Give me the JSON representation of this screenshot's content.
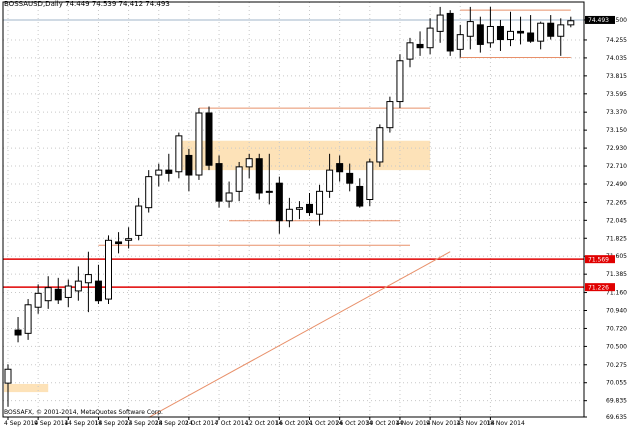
{
  "header": {
    "symbol": "BOSSAUSD,Daily",
    "ohlc": "74.449 74.539 74.412 74.493"
  },
  "copyright": "BOSSAFX, © 2001-2014, MetaQuotes Software Corp.",
  "colors": {
    "background": "#ffffff",
    "grid": "#c8c8c8",
    "axis": "#000000",
    "bull_body": "#ffffff",
    "bear_body": "#000000",
    "wick": "#000000",
    "resistance": "#e8906a",
    "support_red": "#e00000",
    "zone": "#fde2b8",
    "trend": "#e8906a",
    "bid_line": "#a0b4c8"
  },
  "chart_data": {
    "type": "candlestick",
    "ylim": [
      69.635,
      74.72
    ],
    "y_ticks": [
      "74.500",
      "74.255",
      "74.035",
      "73.815",
      "73.595",
      "73.370",
      "73.150",
      "72.930",
      "72.710",
      "72.490",
      "72.265",
      "72.045",
      "71.825",
      "71.605",
      "71.385",
      "71.160",
      "70.940",
      "70.720",
      "70.500",
      "70.275",
      "70.055",
      "69.835",
      "69.635"
    ],
    "x_ticks": [
      {
        "i": 0,
        "label": "4 Sep 2014"
      },
      {
        "i": 3,
        "label": "9 Sep 2014"
      },
      {
        "i": 6,
        "label": "14 Sep 2014"
      },
      {
        "i": 9,
        "label": "18 Sep 2014"
      },
      {
        "i": 12,
        "label": "23 Sep 2014"
      },
      {
        "i": 15,
        "label": "28 Sep 2014"
      },
      {
        "i": 18,
        "label": "2 Oct 2014"
      },
      {
        "i": 21,
        "label": "7 Oct 2014"
      },
      {
        "i": 24,
        "label": "12 Oct 2014"
      },
      {
        "i": 27,
        "label": "16 Oct 2014"
      },
      {
        "i": 30,
        "label": "21 Oct 2014"
      },
      {
        "i": 33,
        "label": "26 Oct 2014"
      },
      {
        "i": 36,
        "label": "30 Oct 2014"
      },
      {
        "i": 39,
        "label": "4 Nov 2014"
      },
      {
        "i": 42,
        "label": "9 Nov 2014"
      },
      {
        "i": 45,
        "label": "13 Nov 2014"
      },
      {
        "i": 48,
        "label": "18 Nov 2014"
      }
    ],
    "current_price": "74.493",
    "red_level_labels": [
      "71.569",
      "71.226"
    ],
    "candles": [
      {
        "o": 70.05,
        "h": 70.28,
        "l": 69.76,
        "c": 70.22
      },
      {
        "o": 70.7,
        "h": 70.86,
        "l": 70.55,
        "c": 70.64
      },
      {
        "o": 70.66,
        "h": 71.08,
        "l": 70.58,
        "c": 71.01
      },
      {
        "o": 70.98,
        "h": 71.26,
        "l": 70.9,
        "c": 71.15
      },
      {
        "o": 71.06,
        "h": 71.36,
        "l": 70.96,
        "c": 71.22
      },
      {
        "o": 71.2,
        "h": 71.34,
        "l": 71.02,
        "c": 71.07
      },
      {
        "o": 71.1,
        "h": 71.32,
        "l": 70.98,
        "c": 71.24
      },
      {
        "o": 71.18,
        "h": 71.48,
        "l": 71.06,
        "c": 71.3
      },
      {
        "o": 71.28,
        "h": 71.66,
        "l": 70.92,
        "c": 71.38
      },
      {
        "o": 71.3,
        "h": 71.5,
        "l": 71.02,
        "c": 71.06
      },
      {
        "o": 71.08,
        "h": 71.86,
        "l": 71.02,
        "c": 71.8
      },
      {
        "o": 71.78,
        "h": 71.9,
        "l": 71.64,
        "c": 71.76
      },
      {
        "o": 71.8,
        "h": 71.96,
        "l": 71.7,
        "c": 71.82
      },
      {
        "o": 71.86,
        "h": 72.32,
        "l": 71.8,
        "c": 72.22
      },
      {
        "o": 72.2,
        "h": 72.66,
        "l": 72.14,
        "c": 72.58
      },
      {
        "o": 72.6,
        "h": 72.74,
        "l": 72.46,
        "c": 72.66
      },
      {
        "o": 72.66,
        "h": 72.86,
        "l": 72.52,
        "c": 72.62
      },
      {
        "o": 72.64,
        "h": 73.12,
        "l": 72.56,
        "c": 73.08
      },
      {
        "o": 72.84,
        "h": 72.92,
        "l": 72.4,
        "c": 72.6
      },
      {
        "o": 72.6,
        "h": 73.42,
        "l": 72.54,
        "c": 73.36
      },
      {
        "o": 73.36,
        "h": 73.44,
        "l": 72.66,
        "c": 72.72
      },
      {
        "o": 72.74,
        "h": 72.84,
        "l": 72.2,
        "c": 72.28
      },
      {
        "o": 72.28,
        "h": 72.52,
        "l": 72.2,
        "c": 72.38
      },
      {
        "o": 72.4,
        "h": 72.76,
        "l": 72.28,
        "c": 72.7
      },
      {
        "o": 72.7,
        "h": 72.86,
        "l": 72.56,
        "c": 72.8
      },
      {
        "o": 72.8,
        "h": 72.86,
        "l": 72.3,
        "c": 72.38
      },
      {
        "o": 72.4,
        "h": 72.86,
        "l": 72.24,
        "c": 72.4
      },
      {
        "o": 72.5,
        "h": 72.58,
        "l": 71.88,
        "c": 72.04
      },
      {
        "o": 72.04,
        "h": 72.32,
        "l": 71.96,
        "c": 72.18
      },
      {
        "o": 72.18,
        "h": 72.28,
        "l": 72.06,
        "c": 72.2
      },
      {
        "o": 72.24,
        "h": 72.38,
        "l": 72.1,
        "c": 72.14
      },
      {
        "o": 72.12,
        "h": 72.48,
        "l": 71.98,
        "c": 72.4
      },
      {
        "o": 72.4,
        "h": 72.86,
        "l": 72.32,
        "c": 72.66
      },
      {
        "o": 72.74,
        "h": 72.84,
        "l": 72.52,
        "c": 72.64
      },
      {
        "o": 72.62,
        "h": 72.74,
        "l": 72.4,
        "c": 72.5
      },
      {
        "o": 72.46,
        "h": 72.56,
        "l": 72.2,
        "c": 72.22
      },
      {
        "o": 72.3,
        "h": 72.8,
        "l": 72.22,
        "c": 72.76
      },
      {
        "o": 72.76,
        "h": 73.22,
        "l": 72.7,
        "c": 73.18
      },
      {
        "o": 73.18,
        "h": 73.56,
        "l": 73.12,
        "c": 73.5
      },
      {
        "o": 73.5,
        "h": 74.08,
        "l": 73.42,
        "c": 74.0
      },
      {
        "o": 74.02,
        "h": 74.28,
        "l": 73.92,
        "c": 74.22
      },
      {
        "o": 74.2,
        "h": 74.36,
        "l": 74.06,
        "c": 74.16
      },
      {
        "o": 74.16,
        "h": 74.52,
        "l": 74.08,
        "c": 74.4
      },
      {
        "o": 74.36,
        "h": 74.66,
        "l": 74.22,
        "c": 74.56
      },
      {
        "o": 74.58,
        "h": 74.62,
        "l": 74.06,
        "c": 74.12
      },
      {
        "o": 74.14,
        "h": 74.44,
        "l": 74.04,
        "c": 74.32
      },
      {
        "o": 74.3,
        "h": 74.66,
        "l": 74.14,
        "c": 74.48
      },
      {
        "o": 74.44,
        "h": 74.54,
        "l": 74.1,
        "c": 74.2
      },
      {
        "o": 74.22,
        "h": 74.66,
        "l": 74.16,
        "c": 74.42
      },
      {
        "o": 74.42,
        "h": 74.5,
        "l": 74.12,
        "c": 74.26
      },
      {
        "o": 74.26,
        "h": 74.6,
        "l": 74.18,
        "c": 74.36
      },
      {
        "o": 74.36,
        "h": 74.54,
        "l": 74.2,
        "c": 74.34
      },
      {
        "o": 74.34,
        "h": 74.56,
        "l": 74.22,
        "c": 74.24
      },
      {
        "o": 74.24,
        "h": 74.48,
        "l": 74.14,
        "c": 74.46
      },
      {
        "o": 74.46,
        "h": 74.56,
        "l": 74.26,
        "c": 74.3
      },
      {
        "o": 74.3,
        "h": 74.52,
        "l": 74.06,
        "c": 74.44
      },
      {
        "o": 74.44,
        "h": 74.54,
        "l": 74.41,
        "c": 74.49
      }
    ],
    "hlines": [
      {
        "price": 74.5,
        "color": "#a0b4c8",
        "width": 1,
        "full": true
      },
      {
        "price": 71.569,
        "color": "#e00000",
        "width": 1.5,
        "full": true
      },
      {
        "price": 71.226,
        "color": "#e00000",
        "width": 1.5,
        "full": true
      }
    ],
    "segments": [
      {
        "i0": 45,
        "i1": 56,
        "p0": 74.62,
        "p1": 74.62,
        "color": "#e8906a"
      },
      {
        "i0": 45,
        "i1": 56,
        "p0": 74.04,
        "p1": 74.04,
        "color": "#e8906a"
      },
      {
        "i0": 19,
        "i1": 42,
        "p0": 73.42,
        "p1": 73.42,
        "color": "#e8906a"
      },
      {
        "i0": 22,
        "i1": 39,
        "p0": 72.04,
        "p1": 72.04,
        "color": "#e8906a"
      },
      {
        "i0": 9,
        "i1": 40,
        "p0": 71.74,
        "p1": 71.74,
        "color": "#e8906a"
      },
      {
        "i0": 14,
        "i1": 44,
        "p0": 69.63,
        "p1": 71.66,
        "color": "#e8906a"
      }
    ],
    "zones": [
      {
        "i0": 17,
        "i1": 42,
        "p0": 72.66,
        "p1": 73.02,
        "color": "#fde2b8"
      },
      {
        "i0": -1,
        "i1": 4,
        "p0": 69.94,
        "p1": 70.04,
        "color": "#fde2b8"
      }
    ]
  }
}
